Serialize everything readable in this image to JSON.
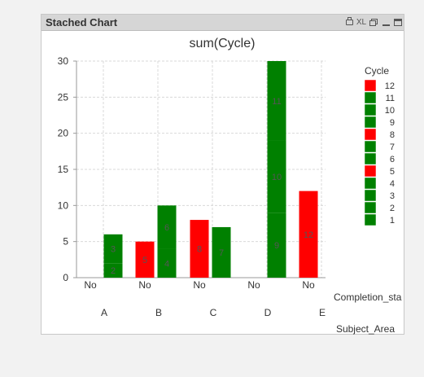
{
  "window": {
    "title": "Stached Chart",
    "controls": {
      "print": "printer-icon",
      "excel": "XL",
      "restore": "restore-icon",
      "minimize": "minimize-icon",
      "maximize": "maximize-icon"
    }
  },
  "colors": {
    "green": "#008000",
    "red": "#ff0000",
    "grid": "#d9d9d9",
    "axis": "#999999",
    "text": "#333333"
  },
  "chart_data": {
    "type": "bar",
    "stacked": true,
    "title": "sum(Cycle)",
    "ylim": [
      0,
      30
    ],
    "yticks": [
      0,
      5,
      10,
      15,
      20,
      25,
      30
    ],
    "grid": true,
    "dimension1_label": "Completion_sta",
    "dimension2_label": "Subject_Area",
    "legend": {
      "title": "Cycle",
      "placement": "right",
      "entries": [
        {
          "label": "12",
          "color": "#ff0000"
        },
        {
          "label": "11",
          "color": "#008000"
        },
        {
          "label": "10",
          "color": "#008000"
        },
        {
          "label": "9",
          "color": "#008000"
        },
        {
          "label": "8",
          "color": "#ff0000"
        },
        {
          "label": "7",
          "color": "#008000"
        },
        {
          "label": "6",
          "color": "#008000"
        },
        {
          "label": "5",
          "color": "#ff0000"
        },
        {
          "label": "4",
          "color": "#008000"
        },
        {
          "label": "3",
          "color": "#008000"
        },
        {
          "label": "2",
          "color": "#008000"
        },
        {
          "label": "1",
          "color": "#008000"
        }
      ]
    },
    "groups": [
      {
        "subject_area": "A",
        "completion_label": "No",
        "bars": [
          {
            "segments": [
              {
                "cycle": "2",
                "value": 2
              },
              {
                "cycle": "3",
                "value": 4
              }
            ]
          }
        ]
      },
      {
        "subject_area": "B",
        "completion_label": "No",
        "bars": [
          {
            "segments": [
              {
                "cycle": "5",
                "value": 5
              }
            ]
          },
          {
            "segments": [
              {
                "cycle": "4",
                "value": 4
              },
              {
                "cycle": "6",
                "value": 6
              }
            ]
          }
        ]
      },
      {
        "subject_area": "C",
        "completion_label": "No",
        "bars": [
          {
            "segments": [
              {
                "cycle": "8",
                "value": 8
              }
            ]
          },
          {
            "segments": [
              {
                "cycle": "7",
                "value": 7
              }
            ]
          }
        ]
      },
      {
        "subject_area": "D",
        "completion_label": "No",
        "bars": [
          {
            "segments": [
              {
                "cycle": "9",
                "value": 9
              },
              {
                "cycle": "10",
                "value": 10
              },
              {
                "cycle": "11",
                "value": 11
              }
            ]
          }
        ]
      },
      {
        "subject_area": "E",
        "completion_label": "No",
        "bars": [
          {
            "segments": [
              {
                "cycle": "12",
                "value": 12
              }
            ]
          }
        ]
      }
    ]
  }
}
